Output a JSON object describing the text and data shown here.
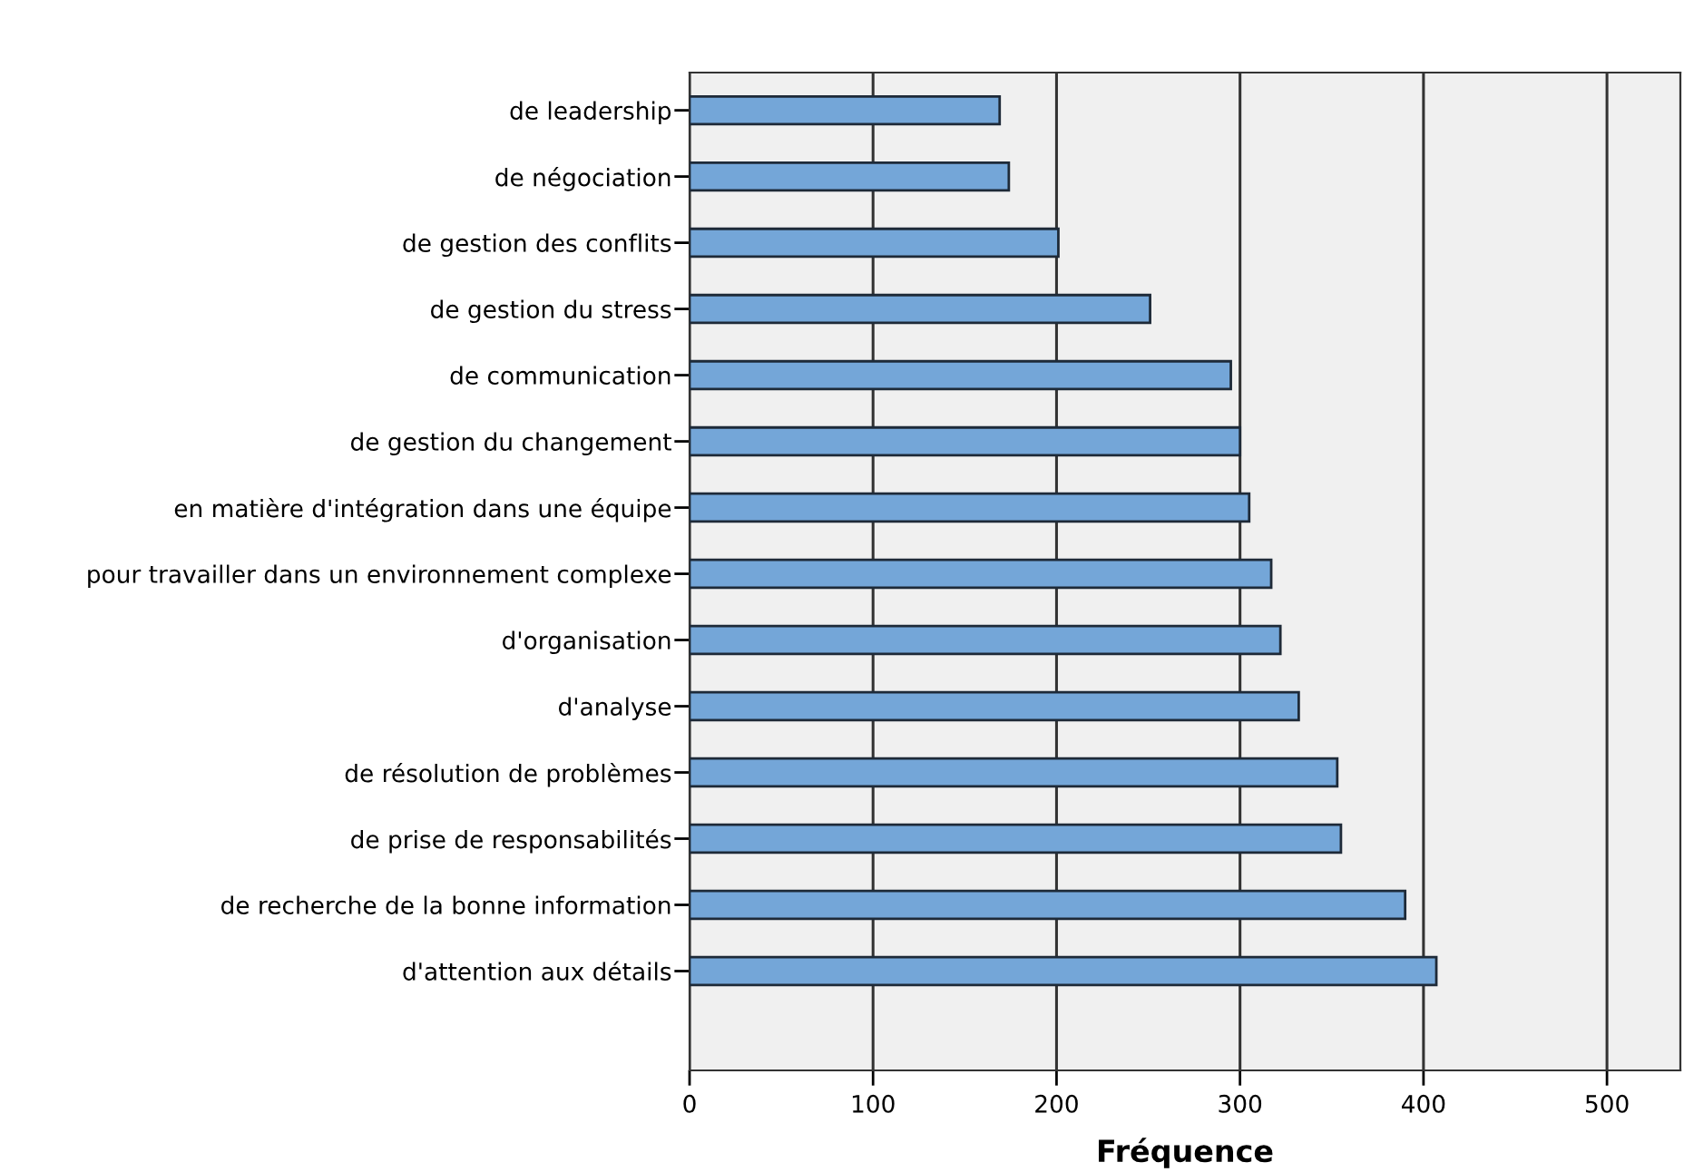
{
  "chart_data": {
    "type": "bar",
    "orientation": "horizontal",
    "xlabel": "Fréquence",
    "categories": [
      "de leadership",
      "de négociation",
      "de gestion des conflits",
      "de gestion du stress",
      "de communication",
      "de gestion du changement",
      "en matière d'intégration dans une équipe",
      "pour travailler dans un environnement complexe",
      "d'organisation",
      "d'analyse",
      "de résolution de problèmes",
      "de prise de responsabilités",
      "de recherche de la bonne information",
      "d'attention aux détails"
    ],
    "values": [
      169,
      174,
      201,
      251,
      295,
      300,
      305,
      317,
      322,
      332,
      353,
      355,
      390,
      407
    ],
    "color": "#74a6d8",
    "xlim": [
      0,
      540
    ],
    "xticks": [
      0,
      100,
      200,
      300,
      400,
      500
    ],
    "grid": "x"
  }
}
